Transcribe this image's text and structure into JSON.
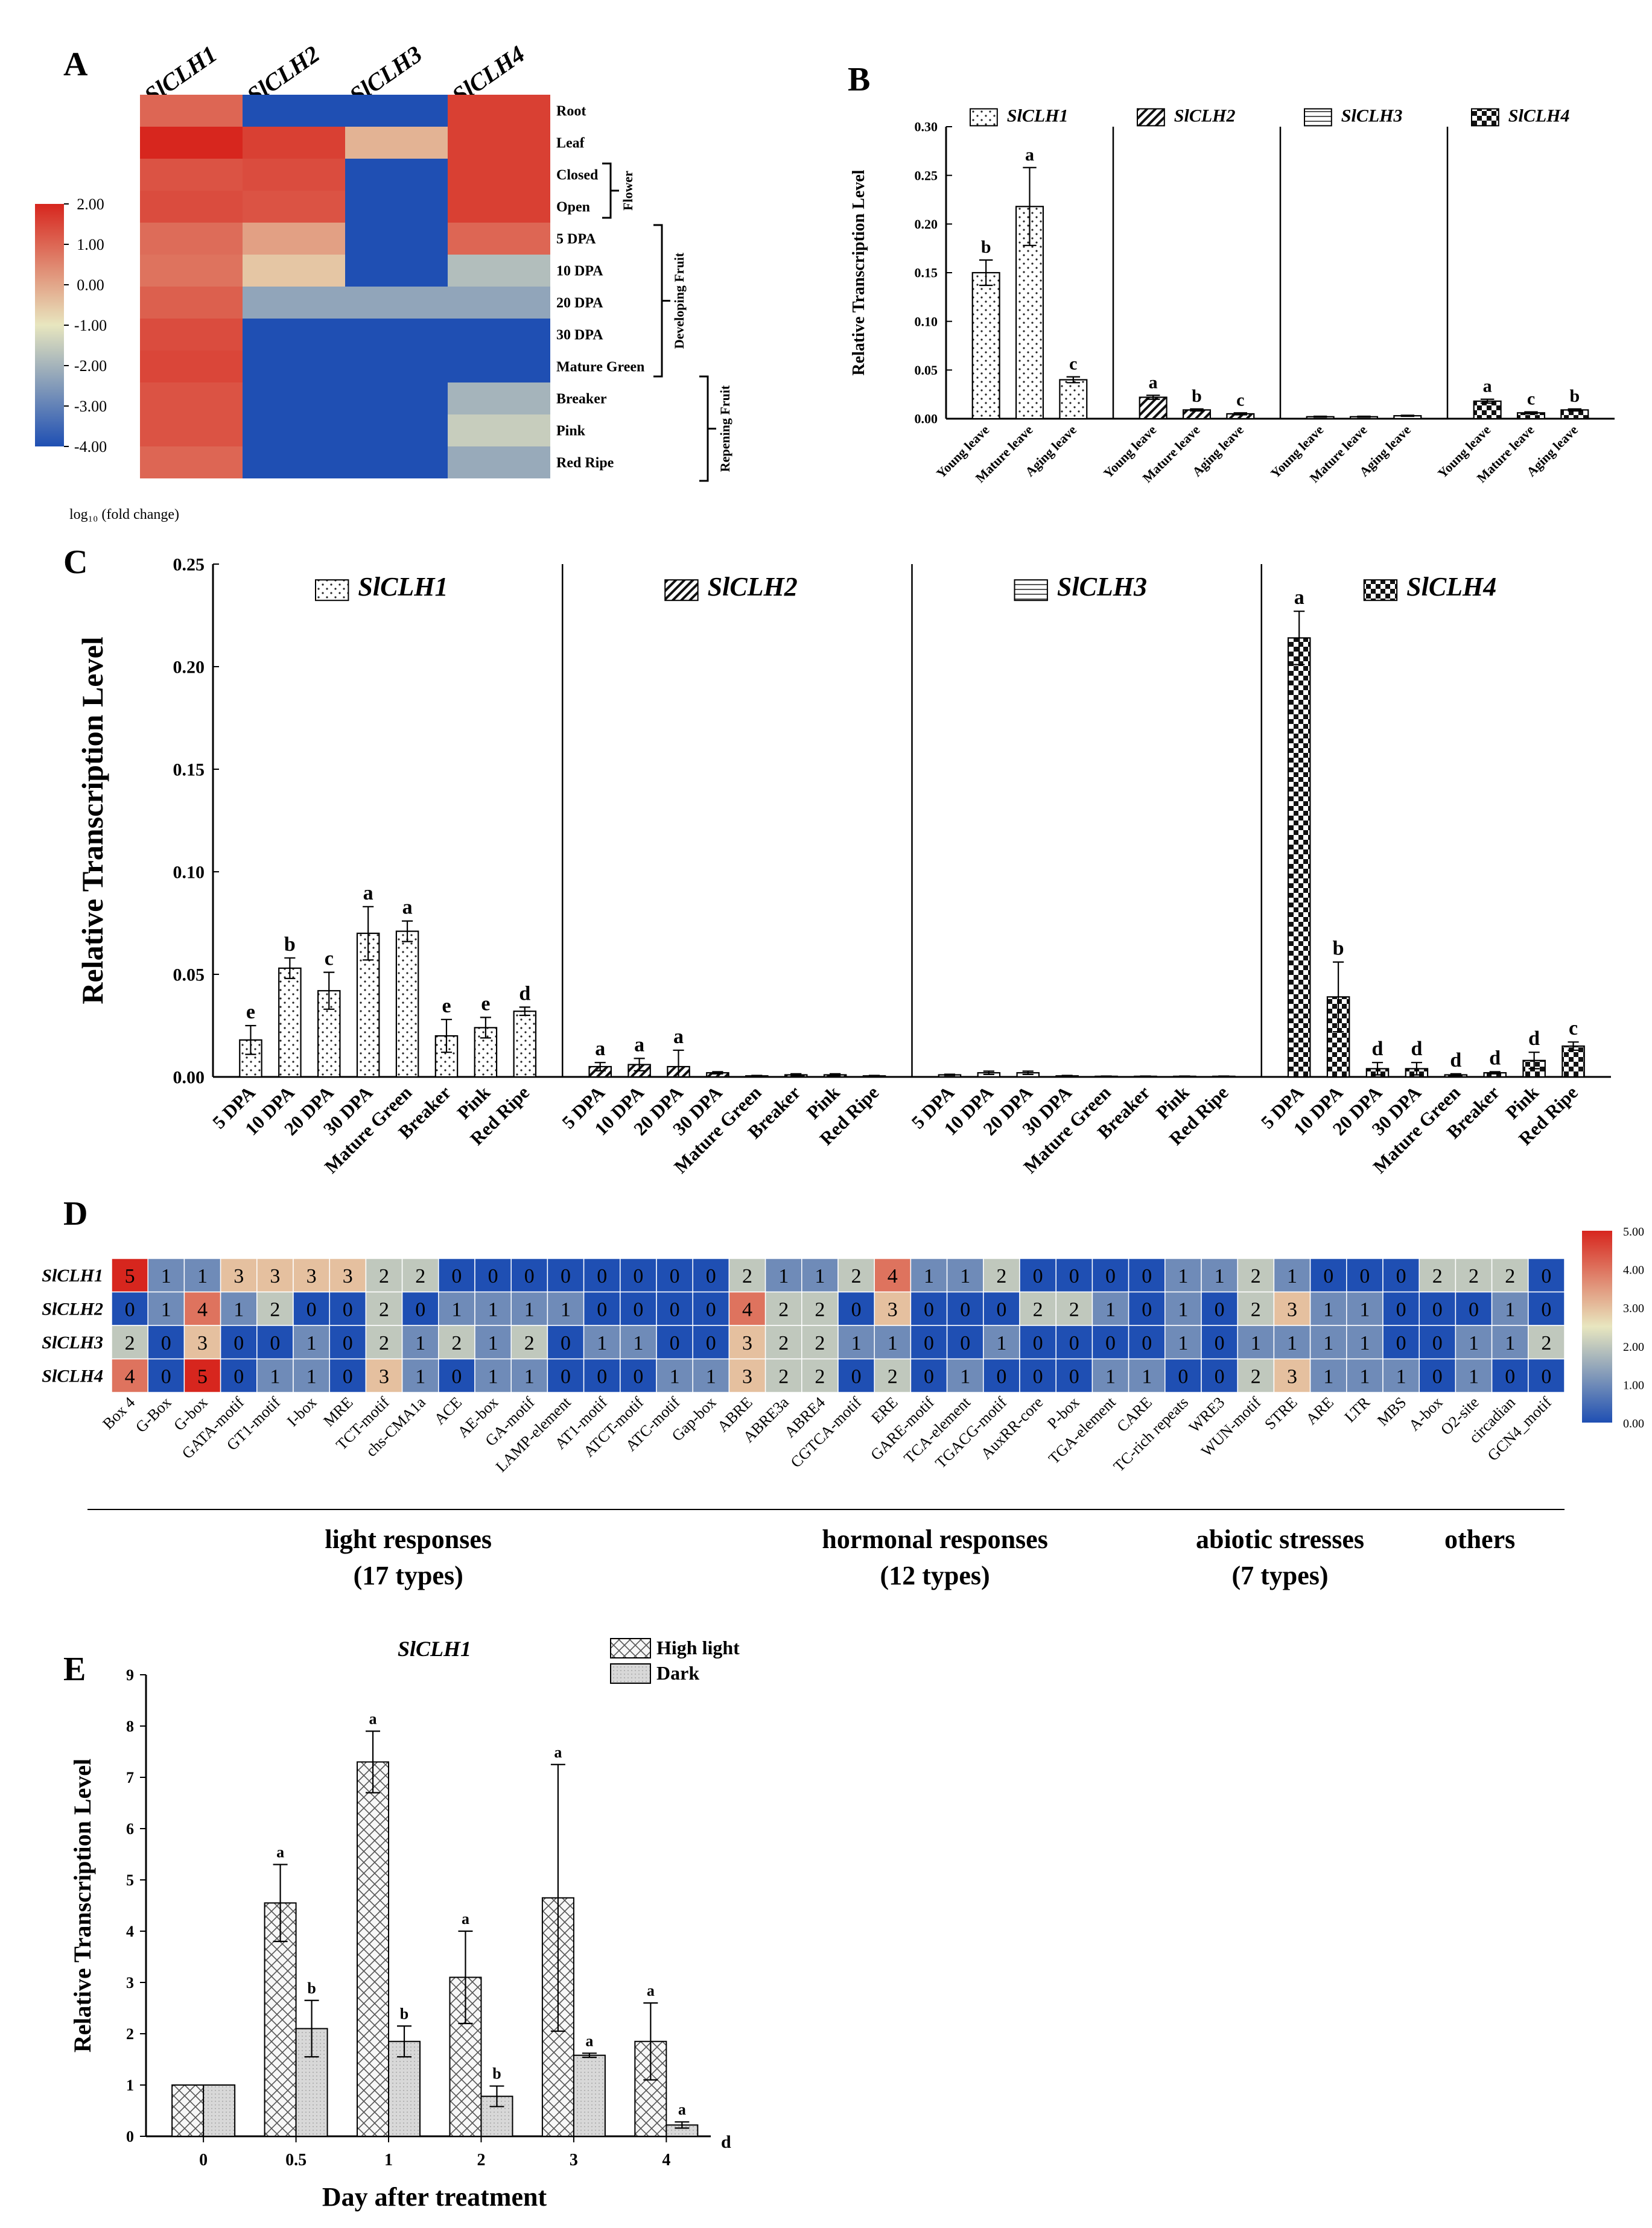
{
  "colors": {
    "heat_low": "#1f4fb3",
    "heat_mid": "#e8e6bf",
    "heat_high": "#d7261e",
    "bar_stroke": "#000000"
  },
  "chart_data": [
    {
      "id": "A",
      "panel_label": "A",
      "type": "heatmap",
      "columns": [
        "SlCLH1",
        "SlCLH2",
        "SlCLH3",
        "SlCLH4"
      ],
      "rows": [
        "Root",
        "Leaf",
        "Closed",
        "Open",
        "5 DPA",
        "10 DPA",
        "20 DPA",
        "30 DPA",
        "Mature Green",
        "Breaker",
        "Pink",
        "Red Ripe"
      ],
      "values": [
        [
          1.0,
          -4.0,
          -4.0,
          1.6
        ],
        [
          2.0,
          1.6,
          -0.2,
          1.6
        ],
        [
          1.3,
          1.4,
          -4.0,
          1.6
        ],
        [
          1.4,
          1.3,
          -4.0,
          1.6
        ],
        [
          0.9,
          0.1,
          -4.0,
          1.0
        ],
        [
          0.8,
          -0.5,
          -4.0,
          -1.8
        ],
        [
          1.1,
          -2.3,
          -2.3,
          -2.3
        ],
        [
          1.4,
          -4.0,
          -4.0,
          -4.0
        ],
        [
          1.5,
          -4.0,
          -4.0,
          -4.0
        ],
        [
          1.3,
          -4.0,
          -4.0,
          -2.0
        ],
        [
          1.3,
          -4.0,
          -4.0,
          -1.5
        ],
        [
          1.0,
          -4.0,
          -4.0,
          -2.2
        ]
      ],
      "colorbar": {
        "range": [
          -4.0,
          2.0
        ],
        "ticks": [
          "2.00",
          "1.00",
          "0.00",
          "-1.00",
          "-2.00",
          "-3.00",
          "-4.00"
        ],
        "label": "log₁₀ (fold change)"
      },
      "groups": [
        {
          "label": "Flower",
          "rows": [
            "Closed",
            "Open"
          ]
        },
        {
          "label": "Developing Fruit",
          "rows": [
            "5 DPA",
            "Mature Green"
          ]
        },
        {
          "label": "Repening Fruit",
          "rows": [
            "Mature Green",
            "Red Ripe"
          ]
        }
      ]
    },
    {
      "id": "B",
      "panel_label": "B",
      "type": "bar",
      "ylabel": "Relative Transcription Level",
      "ylim": [
        0,
        0.3
      ],
      "yticks": [
        "0.00",
        "0.05",
        "0.10",
        "0.15",
        "0.20",
        "0.25",
        "0.30"
      ],
      "categories": [
        "Young leave",
        "Mature leave",
        "Aging leave"
      ],
      "groups": [
        {
          "name": "SlCLH1",
          "pattern": "dots",
          "values": [
            0.15,
            0.218,
            0.04
          ],
          "errors": [
            0.013,
            0.04,
            0.003
          ],
          "letters": [
            "b",
            "a",
            "c"
          ]
        },
        {
          "name": "SlCLH2",
          "pattern": "diag",
          "values": [
            0.022,
            0.009,
            0.005
          ],
          "errors": [
            0.002,
            0.001,
            0.001
          ],
          "letters": [
            "a",
            "b",
            "c"
          ]
        },
        {
          "name": "SlCLH3",
          "pattern": "horiz",
          "values": [
            0.002,
            0.002,
            0.003
          ],
          "errors": [
            0.0005,
            0.0005,
            0.0005
          ],
          "letters": [
            "",
            "",
            ""
          ]
        },
        {
          "name": "SlCLH4",
          "pattern": "check",
          "values": [
            0.018,
            0.006,
            0.009
          ],
          "errors": [
            0.002,
            0.001,
            0.001
          ],
          "letters": [
            "a",
            "c",
            "b"
          ]
        }
      ]
    },
    {
      "id": "C",
      "panel_label": "C",
      "type": "bar",
      "ylabel": "Relative Transcription Level",
      "ylim": [
        0,
        0.25
      ],
      "yticks": [
        "0.00",
        "0.05",
        "0.10",
        "0.15",
        "0.20",
        "0.25"
      ],
      "categories": [
        "5 DPA",
        "10 DPA",
        "20 DPA",
        "30 DPA",
        "Mature Green",
        "Breaker",
        "Pink",
        "Red Ripe"
      ],
      "groups": [
        {
          "name": "SlCLH1",
          "pattern": "dots",
          "values": [
            0.018,
            0.053,
            0.042,
            0.07,
            0.071,
            0.02,
            0.024,
            0.032
          ],
          "errors": [
            0.007,
            0.005,
            0.009,
            0.013,
            0.005,
            0.008,
            0.005,
            0.002
          ],
          "letters": [
            "e",
            "b",
            "c",
            "a",
            "a",
            "e",
            "e",
            "d"
          ]
        },
        {
          "name": "SlCLH2",
          "pattern": "diag",
          "values": [
            0.005,
            0.006,
            0.005,
            0.002,
            0.0005,
            0.001,
            0.001,
            0.0005
          ],
          "errors": [
            0.002,
            0.003,
            0.008,
            0.0005,
            0.0002,
            0.0005,
            0.0005,
            0.0002
          ],
          "letters": [
            "a",
            "a",
            "a",
            "",
            "",
            "",
            "",
            ""
          ]
        },
        {
          "name": "SlCLH3",
          "pattern": "horiz",
          "values": [
            0.001,
            0.002,
            0.002,
            0.0005,
            0.0003,
            0.0003,
            0.0003,
            0.0003
          ],
          "errors": [
            0.0003,
            0.0008,
            0.0008,
            0.0002,
            0.0001,
            0.0001,
            0.0001,
            0.0001
          ],
          "letters": [
            "",
            "",
            "",
            "",
            "",
            "",
            "",
            ""
          ]
        },
        {
          "name": "SlCLH4",
          "pattern": "check",
          "values": [
            0.214,
            0.039,
            0.004,
            0.004,
            0.001,
            0.002,
            0.008,
            0.015
          ],
          "errors": [
            0.013,
            0.017,
            0.003,
            0.003,
            0.0005,
            0.0005,
            0.004,
            0.002
          ],
          "letters": [
            "a",
            "b",
            "d",
            "d",
            "d",
            "d",
            "d",
            "c"
          ]
        }
      ]
    },
    {
      "id": "D",
      "panel_label": "D",
      "type": "heatmap",
      "rows": [
        "SlCLH1",
        "SlCLH2",
        "SlCLH3",
        "SlCLH4"
      ],
      "columns": [
        "Box 4",
        "G-Box",
        "G-box",
        "GATA-motif",
        "GT1-motif",
        "I-box",
        "MRE",
        "TCT-motif",
        "chs-CMA1a",
        "ACE",
        "AE-box",
        "GA-motif",
        "LAMP-element",
        "AT1-motif",
        "ATCT-motif",
        "ATC-motif",
        "Gap-box",
        "ABRE",
        "ABRE3a",
        "ABRE4",
        "CGTCA-motif",
        "ERE",
        "GARE-motif",
        "TCA-element",
        "TGACG-motif",
        "AuxRR-core",
        "P-box",
        "TGA-element",
        "CARE",
        "TC-rich repeats",
        "WRE3",
        "WUN-motif",
        "STRE",
        "ARE",
        "LTR",
        "MBS",
        "A-box",
        "O2-site",
        "circadian",
        "GCN4_motif"
      ],
      "values": [
        [
          5,
          1,
          1,
          3,
          3,
          3,
          3,
          2,
          2,
          0,
          0,
          0,
          0,
          0,
          0,
          0,
          0,
          2,
          1,
          1,
          2,
          4,
          1,
          1,
          2,
          0,
          0,
          0,
          0,
          1,
          1,
          2,
          1,
          0,
          0,
          0,
          2,
          2,
          2,
          0
        ],
        [
          0,
          1,
          4,
          1,
          2,
          0,
          0,
          2,
          0,
          1,
          1,
          1,
          1,
          0,
          0,
          0,
          0,
          4,
          2,
          2,
          0,
          3,
          0,
          0,
          0,
          2,
          2,
          1,
          0,
          1,
          0,
          2,
          3,
          1,
          1,
          0,
          0,
          0,
          1,
          0
        ],
        [
          2,
          0,
          3,
          0,
          0,
          1,
          0,
          2,
          1,
          2,
          1,
          2,
          0,
          1,
          1,
          0,
          0,
          3,
          2,
          2,
          1,
          1,
          0,
          0,
          1,
          0,
          0,
          0,
          0,
          1,
          0,
          1,
          1,
          1,
          1,
          0,
          0,
          1,
          1,
          2
        ],
        [
          4,
          0,
          5,
          0,
          1,
          1,
          0,
          3,
          1,
          0,
          1,
          1,
          0,
          0,
          0,
          1,
          1,
          3,
          2,
          2,
          0,
          2,
          0,
          1,
          0,
          0,
          0,
          1,
          1,
          0,
          0,
          2,
          3,
          1,
          1,
          1,
          0,
          1,
          0,
          0
        ]
      ],
      "colorbar": {
        "range": [
          0,
          5
        ],
        "ticks": [
          "5.00",
          "4.00",
          "3.00",
          "2.00",
          "1.00",
          "0.00"
        ]
      },
      "categories": [
        {
          "label": "light responses",
          "sub": "(17 types)",
          "from": 0,
          "to": 16
        },
        {
          "label": "hormonal responses",
          "sub": "(12 types)",
          "from": 17,
          "to": 28
        },
        {
          "label": "abiotic stresses",
          "sub": "(7 types)",
          "from": 29,
          "to": 35
        },
        {
          "label": "others",
          "sub": "",
          "from": 36,
          "to": 39
        }
      ]
    },
    {
      "id": "E",
      "panel_label": "E",
      "type": "bar",
      "title": "SlCLH1",
      "ylabel": "Relative Transcription Level",
      "xlabel": "Day after treatment",
      "xunit": "d",
      "ylim": [
        0,
        9
      ],
      "yticks": [
        "0",
        "1",
        "2",
        "3",
        "4",
        "5",
        "6",
        "7",
        "8",
        "9"
      ],
      "categories": [
        "0",
        "0.5",
        "1",
        "2",
        "3",
        "4"
      ],
      "series": [
        {
          "name": "High light",
          "pattern": "crosshatch",
          "values": [
            1.0,
            4.55,
            7.3,
            3.1,
            4.65,
            1.85
          ],
          "errors": [
            0,
            0.75,
            0.6,
            0.9,
            2.6,
            0.75
          ],
          "letters": [
            "",
            "a",
            "a",
            "a",
            "a",
            "a"
          ]
        },
        {
          "name": "Dark",
          "pattern": "grey",
          "values": [
            1.0,
            2.1,
            1.85,
            0.78,
            1.58,
            0.22
          ],
          "errors": [
            0,
            0.55,
            0.3,
            0.2,
            0.04,
            0.06
          ],
          "letters": [
            "",
            "b",
            "b",
            "b",
            "a",
            "a"
          ]
        }
      ]
    }
  ]
}
